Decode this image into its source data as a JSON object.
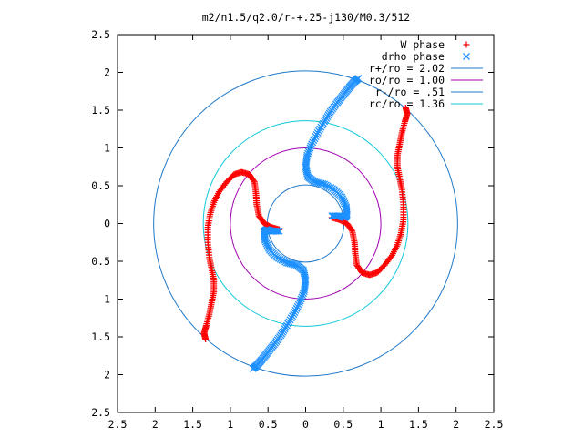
{
  "chart_data": {
    "type": "scatter",
    "title": "m2/n1.5/q2.0/r-+.25-j130/M0.3/512",
    "xlabel": "",
    "ylabel": "",
    "xlim": [
      -2.5,
      2.5
    ],
    "ylim": [
      -2.5,
      2.5
    ],
    "x_ticks": [
      -2.5,
      -2,
      -1.5,
      -1,
      -0.5,
      0,
      0.5,
      1,
      1.5,
      2,
      2.5
    ],
    "y_ticks": [
      -2.5,
      -2,
      -1.5,
      -1,
      -0.5,
      0,
      0.5,
      1,
      1.5,
      2,
      2.5
    ],
    "x_tick_labels": [
      "2.5",
      "2",
      "1.5",
      "1",
      "0.5",
      "0",
      "0.5",
      "1",
      "1.5",
      "2",
      "2.5"
    ],
    "y_tick_labels": [
      "2.5",
      "2",
      "1.5",
      "1",
      "0.5",
      "0",
      "0.5",
      "1",
      "1.5",
      "2",
      "2.5"
    ],
    "grid": false,
    "legend_position": "top-right",
    "series": [
      {
        "name": "W phase",
        "marker": "+",
        "color": "#ff0000",
        "arms": [
          [
            [
              -0.35,
              -0.08
            ],
            [
              -0.45,
              -0.05
            ],
            [
              -0.55,
              0.0
            ],
            [
              -0.62,
              0.1
            ],
            [
              -0.65,
              0.25
            ],
            [
              -0.66,
              0.4
            ],
            [
              -0.68,
              0.55
            ],
            [
              -0.75,
              0.65
            ],
            [
              -0.85,
              0.68
            ],
            [
              -0.95,
              0.65
            ],
            [
              -1.05,
              0.55
            ],
            [
              -1.15,
              0.42
            ],
            [
              -1.22,
              0.28
            ],
            [
              -1.27,
              0.12
            ],
            [
              -1.3,
              -0.05
            ],
            [
              -1.3,
              -0.25
            ],
            [
              -1.28,
              -0.45
            ],
            [
              -1.25,
              -0.6
            ],
            [
              -1.22,
              -0.75
            ],
            [
              -1.22,
              -0.9
            ],
            [
              -1.25,
              -1.05
            ],
            [
              -1.28,
              -1.2
            ],
            [
              -1.32,
              -1.35
            ],
            [
              -1.35,
              -1.45
            ],
            [
              -1.33,
              -1.53
            ]
          ],
          [
            [
              0.35,
              0.08
            ],
            [
              0.45,
              0.05
            ],
            [
              0.55,
              0.0
            ],
            [
              0.62,
              -0.1
            ],
            [
              0.65,
              -0.25
            ],
            [
              0.66,
              -0.4
            ],
            [
              0.68,
              -0.55
            ],
            [
              0.75,
              -0.65
            ],
            [
              0.85,
              -0.68
            ],
            [
              0.95,
              -0.65
            ],
            [
              1.05,
              -0.55
            ],
            [
              1.15,
              -0.42
            ],
            [
              1.22,
              -0.28
            ],
            [
              1.27,
              -0.12
            ],
            [
              1.3,
              0.05
            ],
            [
              1.3,
              0.25
            ],
            [
              1.28,
              0.45
            ],
            [
              1.25,
              0.6
            ],
            [
              1.22,
              0.75
            ],
            [
              1.22,
              0.9
            ],
            [
              1.25,
              1.05
            ],
            [
              1.28,
              1.2
            ],
            [
              1.32,
              1.35
            ],
            [
              1.35,
              1.45
            ],
            [
              1.33,
              1.53
            ]
          ]
        ]
      },
      {
        "name": "drho phase",
        "marker": "x",
        "color": "#1e90ff",
        "arms": [
          [
            [
              0.35,
              0.1
            ],
            [
              0.45,
              0.1
            ],
            [
              0.52,
              0.08
            ],
            [
              0.55,
              0.1
            ],
            [
              0.54,
              0.22
            ],
            [
              0.48,
              0.35
            ],
            [
              0.38,
              0.45
            ],
            [
              0.25,
              0.52
            ],
            [
              0.12,
              0.55
            ],
            [
              0.03,
              0.62
            ],
            [
              0.0,
              0.75
            ],
            [
              0.02,
              0.9
            ],
            [
              0.08,
              1.05
            ],
            [
              0.16,
              1.2
            ],
            [
              0.25,
              1.35
            ],
            [
              0.33,
              1.48
            ],
            [
              0.42,
              1.6
            ],
            [
              0.5,
              1.7
            ],
            [
              0.58,
              1.8
            ],
            [
              0.65,
              1.88
            ],
            [
              0.7,
              1.92
            ]
          ],
          [
            [
              -0.35,
              -0.1
            ],
            [
              -0.45,
              -0.1
            ],
            [
              -0.52,
              -0.08
            ],
            [
              -0.55,
              -0.1
            ],
            [
              -0.54,
              -0.22
            ],
            [
              -0.48,
              -0.35
            ],
            [
              -0.38,
              -0.45
            ],
            [
              -0.25,
              -0.52
            ],
            [
              -0.12,
              -0.55
            ],
            [
              -0.03,
              -0.62
            ],
            [
              0.0,
              -0.75
            ],
            [
              -0.02,
              -0.9
            ],
            [
              -0.08,
              -1.05
            ],
            [
              -0.16,
              -1.2
            ],
            [
              -0.25,
              -1.35
            ],
            [
              -0.33,
              -1.48
            ],
            [
              -0.42,
              -1.6
            ],
            [
              -0.5,
              -1.7
            ],
            [
              -0.58,
              -1.8
            ],
            [
              -0.65,
              -1.88
            ],
            [
              -0.7,
              -1.92
            ]
          ]
        ]
      }
    ],
    "circles": [
      {
        "name": "r+/ro = 2.02",
        "radius": 2.02,
        "color": "#1e78c8"
      },
      {
        "name": "ro/ro = 1.00",
        "radius": 1.0,
        "color": "#a000b0"
      },
      {
        "name": "r-/ro = .51",
        "radius": 0.51,
        "color": "#1e78c8"
      },
      {
        "name": "rc/ro = 1.36",
        "radius": 1.36,
        "color": "#10c8d8"
      }
    ]
  }
}
